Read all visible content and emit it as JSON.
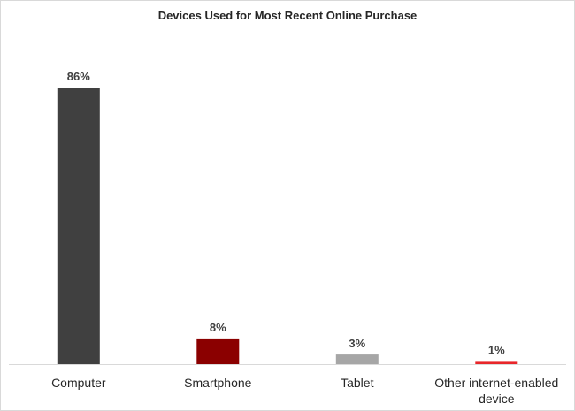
{
  "chart_data": {
    "type": "bar",
    "title": "Devices Used for Most Recent Online Purchase",
    "xlabel": "",
    "ylabel": "",
    "categories": [
      [
        "Computer"
      ],
      [
        "Smartphone"
      ],
      [
        "Tablet"
      ],
      [
        "Other internet-enabled",
        "device"
      ]
    ],
    "values": [
      86,
      8,
      3,
      1
    ],
    "data_labels": [
      "86%",
      "8%",
      "3%",
      "1%"
    ],
    "colors": [
      "#404040",
      "#8b0000",
      "#a6a6a6",
      "#e8262a"
    ],
    "axis_color": "#d9d9d9",
    "ylim": [
      0,
      100
    ],
    "grid": false,
    "legend": "none"
  }
}
